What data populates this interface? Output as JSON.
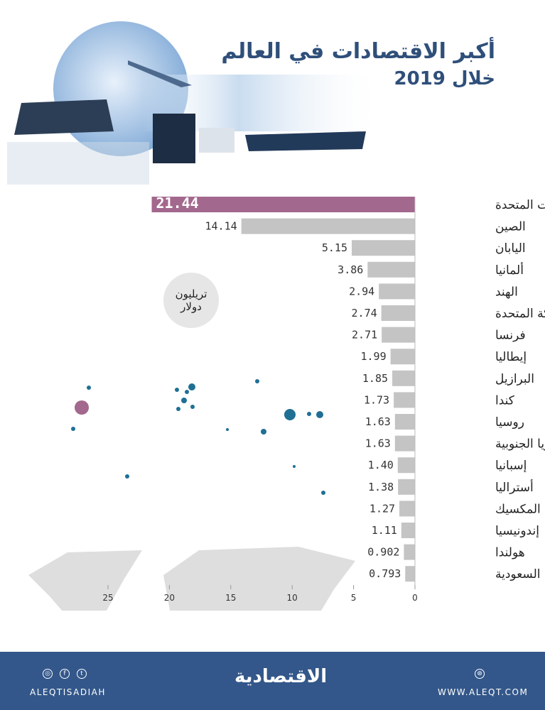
{
  "header": {
    "title": "أكبر الاقتصادات في العالم",
    "subtitle": "خلال 2019"
  },
  "unit_badge": {
    "line1": "تريليون",
    "line2": "دولار"
  },
  "chart_data": {
    "type": "bar",
    "orientation": "horizontal",
    "categories": [
      "الولايات المتحدة",
      "الصين",
      "اليابان",
      "ألمانيا",
      "الهند",
      "المملكة المتحدة",
      "فرنسا",
      "إيطاليا",
      "البرازيل",
      "كندا",
      "روسيا",
      "كوريا الجنوبية",
      "إسبانيا",
      "أستراليا",
      "المكسيك",
      "إندونيسيا",
      "هولندا",
      "السعودية"
    ],
    "values": [
      21.44,
      14.14,
      5.15,
      3.86,
      2.94,
      2.74,
      2.71,
      1.99,
      1.85,
      1.73,
      1.63,
      1.63,
      1.4,
      1.38,
      1.27,
      1.11,
      0.902,
      0.793
    ],
    "labels": [
      "21.44",
      "14.14",
      "5.15",
      "3.86",
      "2.94",
      "2.74",
      "2.71",
      "1.99",
      "1.85",
      "1.73",
      "1.63",
      "1.63",
      "1.40",
      "1.38",
      "1.27",
      "1.11",
      "0.902",
      "0.793"
    ],
    "xlim": [
      0,
      25
    ],
    "xticks": [
      "0",
      "5",
      "10",
      "15",
      "20",
      "25"
    ],
    "x_direction": "right-to-left",
    "colors": {
      "highlight": "#a3688d",
      "bar": "#c4c4c4",
      "dot": "#1f6f95"
    }
  },
  "footer": {
    "social_handle": "ALEQTISADIAH",
    "logo": "الاقتصادية",
    "website": "WWW.ALEQT.COM",
    "icons": [
      "instagram-icon",
      "facebook-icon",
      "twitter-icon",
      "web-icon"
    ]
  }
}
